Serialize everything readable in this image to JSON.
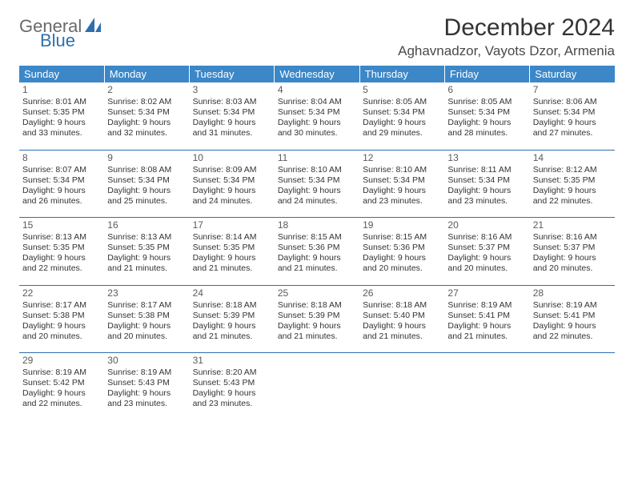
{
  "logo": {
    "text_general": "General",
    "text_blue": "Blue"
  },
  "title": "December 2024",
  "location": "Aghavnadzor, Vayots Dzor, Armenia",
  "colors": {
    "header_bg": "#3b87c8",
    "header_text": "#ffffff",
    "rule": "#2f6fae",
    "body_text": "#333333",
    "logo_gray": "#6a6a6a",
    "logo_blue": "#2f6fae"
  },
  "dow": [
    "Sunday",
    "Monday",
    "Tuesday",
    "Wednesday",
    "Thursday",
    "Friday",
    "Saturday"
  ],
  "weeks": [
    [
      {
        "n": "1",
        "sr": "Sunrise: 8:01 AM",
        "ss": "Sunset: 5:35 PM",
        "d1": "Daylight: 9 hours",
        "d2": "and 33 minutes."
      },
      {
        "n": "2",
        "sr": "Sunrise: 8:02 AM",
        "ss": "Sunset: 5:34 PM",
        "d1": "Daylight: 9 hours",
        "d2": "and 32 minutes."
      },
      {
        "n": "3",
        "sr": "Sunrise: 8:03 AM",
        "ss": "Sunset: 5:34 PM",
        "d1": "Daylight: 9 hours",
        "d2": "and 31 minutes."
      },
      {
        "n": "4",
        "sr": "Sunrise: 8:04 AM",
        "ss": "Sunset: 5:34 PM",
        "d1": "Daylight: 9 hours",
        "d2": "and 30 minutes."
      },
      {
        "n": "5",
        "sr": "Sunrise: 8:05 AM",
        "ss": "Sunset: 5:34 PM",
        "d1": "Daylight: 9 hours",
        "d2": "and 29 minutes."
      },
      {
        "n": "6",
        "sr": "Sunrise: 8:05 AM",
        "ss": "Sunset: 5:34 PM",
        "d1": "Daylight: 9 hours",
        "d2": "and 28 minutes."
      },
      {
        "n": "7",
        "sr": "Sunrise: 8:06 AM",
        "ss": "Sunset: 5:34 PM",
        "d1": "Daylight: 9 hours",
        "d2": "and 27 minutes."
      }
    ],
    [
      {
        "n": "8",
        "sr": "Sunrise: 8:07 AM",
        "ss": "Sunset: 5:34 PM",
        "d1": "Daylight: 9 hours",
        "d2": "and 26 minutes."
      },
      {
        "n": "9",
        "sr": "Sunrise: 8:08 AM",
        "ss": "Sunset: 5:34 PM",
        "d1": "Daylight: 9 hours",
        "d2": "and 25 minutes."
      },
      {
        "n": "10",
        "sr": "Sunrise: 8:09 AM",
        "ss": "Sunset: 5:34 PM",
        "d1": "Daylight: 9 hours",
        "d2": "and 24 minutes."
      },
      {
        "n": "11",
        "sr": "Sunrise: 8:10 AM",
        "ss": "Sunset: 5:34 PM",
        "d1": "Daylight: 9 hours",
        "d2": "and 24 minutes."
      },
      {
        "n": "12",
        "sr": "Sunrise: 8:10 AM",
        "ss": "Sunset: 5:34 PM",
        "d1": "Daylight: 9 hours",
        "d2": "and 23 minutes."
      },
      {
        "n": "13",
        "sr": "Sunrise: 8:11 AM",
        "ss": "Sunset: 5:34 PM",
        "d1": "Daylight: 9 hours",
        "d2": "and 23 minutes."
      },
      {
        "n": "14",
        "sr": "Sunrise: 8:12 AM",
        "ss": "Sunset: 5:35 PM",
        "d1": "Daylight: 9 hours",
        "d2": "and 22 minutes."
      }
    ],
    [
      {
        "n": "15",
        "sr": "Sunrise: 8:13 AM",
        "ss": "Sunset: 5:35 PM",
        "d1": "Daylight: 9 hours",
        "d2": "and 22 minutes."
      },
      {
        "n": "16",
        "sr": "Sunrise: 8:13 AM",
        "ss": "Sunset: 5:35 PM",
        "d1": "Daylight: 9 hours",
        "d2": "and 21 minutes."
      },
      {
        "n": "17",
        "sr": "Sunrise: 8:14 AM",
        "ss": "Sunset: 5:35 PM",
        "d1": "Daylight: 9 hours",
        "d2": "and 21 minutes."
      },
      {
        "n": "18",
        "sr": "Sunrise: 8:15 AM",
        "ss": "Sunset: 5:36 PM",
        "d1": "Daylight: 9 hours",
        "d2": "and 21 minutes."
      },
      {
        "n": "19",
        "sr": "Sunrise: 8:15 AM",
        "ss": "Sunset: 5:36 PM",
        "d1": "Daylight: 9 hours",
        "d2": "and 20 minutes."
      },
      {
        "n": "20",
        "sr": "Sunrise: 8:16 AM",
        "ss": "Sunset: 5:37 PM",
        "d1": "Daylight: 9 hours",
        "d2": "and 20 minutes."
      },
      {
        "n": "21",
        "sr": "Sunrise: 8:16 AM",
        "ss": "Sunset: 5:37 PM",
        "d1": "Daylight: 9 hours",
        "d2": "and 20 minutes."
      }
    ],
    [
      {
        "n": "22",
        "sr": "Sunrise: 8:17 AM",
        "ss": "Sunset: 5:38 PM",
        "d1": "Daylight: 9 hours",
        "d2": "and 20 minutes."
      },
      {
        "n": "23",
        "sr": "Sunrise: 8:17 AM",
        "ss": "Sunset: 5:38 PM",
        "d1": "Daylight: 9 hours",
        "d2": "and 20 minutes."
      },
      {
        "n": "24",
        "sr": "Sunrise: 8:18 AM",
        "ss": "Sunset: 5:39 PM",
        "d1": "Daylight: 9 hours",
        "d2": "and 21 minutes."
      },
      {
        "n": "25",
        "sr": "Sunrise: 8:18 AM",
        "ss": "Sunset: 5:39 PM",
        "d1": "Daylight: 9 hours",
        "d2": "and 21 minutes."
      },
      {
        "n": "26",
        "sr": "Sunrise: 8:18 AM",
        "ss": "Sunset: 5:40 PM",
        "d1": "Daylight: 9 hours",
        "d2": "and 21 minutes."
      },
      {
        "n": "27",
        "sr": "Sunrise: 8:19 AM",
        "ss": "Sunset: 5:41 PM",
        "d1": "Daylight: 9 hours",
        "d2": "and 21 minutes."
      },
      {
        "n": "28",
        "sr": "Sunrise: 8:19 AM",
        "ss": "Sunset: 5:41 PM",
        "d1": "Daylight: 9 hours",
        "d2": "and 22 minutes."
      }
    ],
    [
      {
        "n": "29",
        "sr": "Sunrise: 8:19 AM",
        "ss": "Sunset: 5:42 PM",
        "d1": "Daylight: 9 hours",
        "d2": "and 22 minutes."
      },
      {
        "n": "30",
        "sr": "Sunrise: 8:19 AM",
        "ss": "Sunset: 5:43 PM",
        "d1": "Daylight: 9 hours",
        "d2": "and 23 minutes."
      },
      {
        "n": "31",
        "sr": "Sunrise: 8:20 AM",
        "ss": "Sunset: 5:43 PM",
        "d1": "Daylight: 9 hours",
        "d2": "and 23 minutes."
      },
      null,
      null,
      null,
      null
    ]
  ]
}
